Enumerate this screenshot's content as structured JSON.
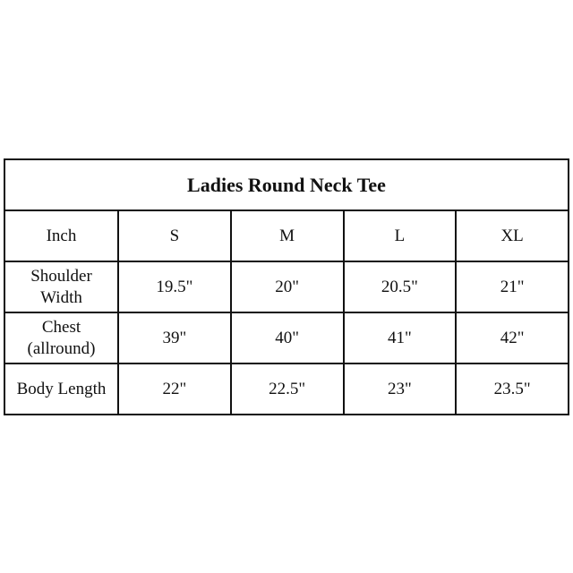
{
  "table": {
    "title": "Ladies Round Neck Tee",
    "header": [
      "Inch",
      "S",
      "M",
      "L",
      "XL"
    ],
    "rows": [
      {
        "label_line1": "Shoulder",
        "label_line2": "Width",
        "values": [
          "19.5\"",
          "20\"",
          "20.5\"",
          "21\""
        ]
      },
      {
        "label_line1": "Chest",
        "label_line2": "(allround)",
        "values": [
          "39\"",
          "40\"",
          "41\"",
          "42\""
        ]
      },
      {
        "label_line1": "Body Length",
        "label_line2": "",
        "values": [
          "22\"",
          "22.5\"",
          "23\"",
          "23.5\""
        ]
      }
    ]
  }
}
